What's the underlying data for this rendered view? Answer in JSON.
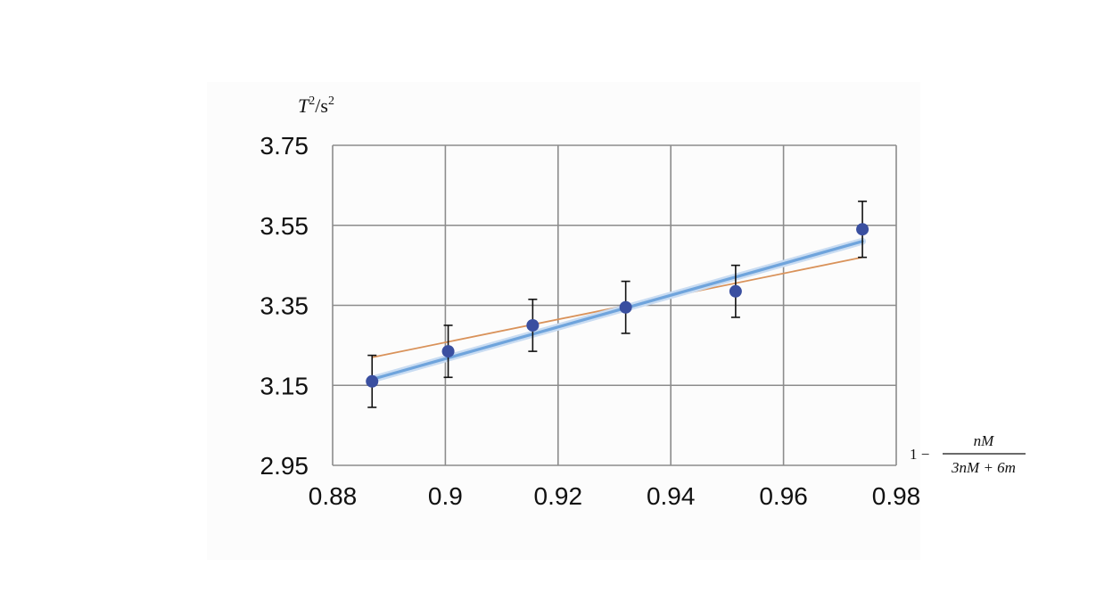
{
  "chart_data": {
    "type": "scatter",
    "ylabel": {
      "parts": [
        {
          "text": "T",
          "italic": true
        },
        {
          "text": "2",
          "sup": true
        },
        {
          "text": "/s",
          "italic": false
        },
        {
          "text": "2",
          "sup": true
        }
      ]
    },
    "xlabel": {
      "prefix": "1 −",
      "numerator": "nM",
      "denominator": "3nM + 6m"
    },
    "xlim": [
      0.88,
      0.98
    ],
    "ylim": [
      2.95,
      3.75
    ],
    "xticks": [
      "0.88",
      "0.9",
      "0.92",
      "0.94",
      "0.96",
      "0.98"
    ],
    "yticks": [
      "2.95",
      "3.15",
      "3.35",
      "3.55",
      "3.75"
    ],
    "grid": true,
    "legend": "none",
    "colors": {
      "points": "#3a4fa0",
      "fit_line": "#6fa4dc",
      "reference_line": "#d9925a",
      "error_bars": "#111111",
      "grid": "#8c8c8c"
    },
    "points": [
      {
        "x": 0.887,
        "y": 3.16,
        "yerr": 0.065
      },
      {
        "x": 0.9005,
        "y": 3.235,
        "yerr": 0.065
      },
      {
        "x": 0.9155,
        "y": 3.3,
        "yerr": 0.065
      },
      {
        "x": 0.932,
        "y": 3.345,
        "yerr": 0.065
      },
      {
        "x": 0.9515,
        "y": 3.385,
        "yerr": 0.065
      },
      {
        "x": 0.974,
        "y": 3.54,
        "yerr": 0.07
      }
    ],
    "fit_line": {
      "x": [
        0.887,
        0.974
      ],
      "y": [
        3.165,
        3.51
      ]
    },
    "reference_line": {
      "x": [
        0.887,
        0.974
      ],
      "y": [
        3.22,
        3.47
      ]
    }
  }
}
